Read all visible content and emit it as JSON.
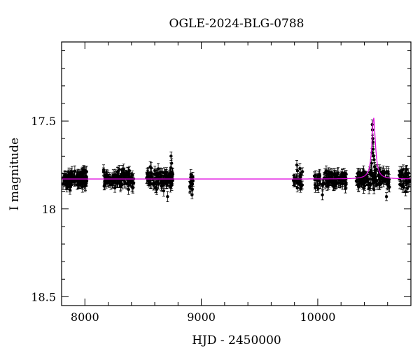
{
  "chart_data": {
    "type": "scatter",
    "title": "OGLE-2024-BLG-0788",
    "xlabel": "HJD - 2450000",
    "ylabel": "I magnitude",
    "xlim": [
      7800,
      10800
    ],
    "ylim": [
      18.55,
      17.05
    ],
    "y_inverted": true,
    "grid": false,
    "legend": "none",
    "x_ticks": [
      8000,
      9000,
      10000
    ],
    "x_tick_labels": [
      "8000",
      "9000",
      "10000"
    ],
    "y_ticks": [
      17.5,
      18,
      18.5
    ],
    "y_tick_labels": [
      "17.5",
      "18",
      "18.5"
    ],
    "colors": {
      "data": "#000000",
      "model": "#dd00dd",
      "frame": "#000000"
    },
    "baseline_mag": 17.83,
    "peak": {
      "t0": 10480,
      "mag": 17.48,
      "t_width": 18
    },
    "data_segments": [
      {
        "t_start": 7810,
        "t_end": 8020,
        "mean_mag": 17.83,
        "scatter": 0.035,
        "n": 120
      },
      {
        "t_start": 8160,
        "t_end": 8420,
        "mean_mag": 17.83,
        "scatter": 0.035,
        "n": 130
      },
      {
        "t_start": 8530,
        "t_end": 8760,
        "mean_mag": 17.83,
        "scatter": 0.04,
        "n": 110
      },
      {
        "t_start": 8900,
        "t_end": 8930,
        "mean_mag": 17.85,
        "scatter": 0.04,
        "n": 14
      },
      {
        "t_start": 9790,
        "t_end": 9870,
        "mean_mag": 17.83,
        "scatter": 0.04,
        "n": 30
      },
      {
        "t_start": 9970,
        "t_end": 10250,
        "mean_mag": 17.83,
        "scatter": 0.035,
        "n": 110
      },
      {
        "t_start": 10330,
        "t_end": 10620,
        "mean_mag": 17.83,
        "scatter": 0.035,
        "n": 120
      },
      {
        "t_start": 10700,
        "t_end": 10790,
        "mean_mag": 17.83,
        "scatter": 0.035,
        "n": 35
      }
    ],
    "outliers": [
      {
        "x": 8740,
        "y": 17.7
      },
      {
        "x": 8745,
        "y": 17.74
      },
      {
        "x": 8920,
        "y": 17.92
      },
      {
        "x": 10040,
        "y": 17.92
      },
      {
        "x": 10590,
        "y": 17.93
      },
      {
        "x": 8710,
        "y": 17.93
      },
      {
        "x": 9820,
        "y": 17.75
      }
    ],
    "peak_points": [
      {
        "x": 10468,
        "y": 17.52
      },
      {
        "x": 10470,
        "y": 17.55
      },
      {
        "x": 10472,
        "y": 17.6
      },
      {
        "x": 10474,
        "y": 17.62
      },
      {
        "x": 10476,
        "y": 17.66
      },
      {
        "x": 10480,
        "y": 17.7
      },
      {
        "x": 10484,
        "y": 17.72
      },
      {
        "x": 10488,
        "y": 17.76
      },
      {
        "x": 10492,
        "y": 17.78
      },
      {
        "x": 10466,
        "y": 17.68
      },
      {
        "x": 10462,
        "y": 17.74
      },
      {
        "x": 10458,
        "y": 17.78
      }
    ]
  }
}
